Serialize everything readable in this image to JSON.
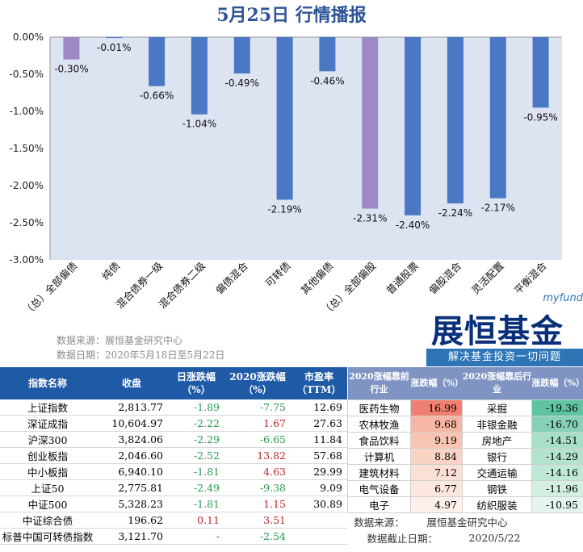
{
  "title": "5月25日   行情播报",
  "chart_data": {
    "type": "bar",
    "categories": [
      "（总）全部偏债",
      "纯债",
      "混合债券一级",
      "混合债券二级",
      "偏债混合",
      "可转债",
      "其他偏债",
      "（总）全部偏股",
      "普通股票",
      "偏股混合",
      "灵活配置",
      "平衡混合"
    ],
    "values": [
      -0.3,
      -0.01,
      -0.66,
      -1.04,
      -0.49,
      -2.19,
      -0.46,
      -2.31,
      -2.4,
      -2.24,
      -2.17,
      -0.95
    ],
    "data_labels": [
      "-0.30%",
      "-0.01%",
      "-0.66%",
      "-1.04%",
      "-0.49%",
      "-2.19%",
      "-0.46%",
      "-2.31%",
      "-2.40%",
      "-2.24%",
      "-2.17%",
      "-0.95%"
    ],
    "highlight_categories": [
      "（总）全部偏债",
      "（总）全部偏股"
    ],
    "y_ticks": [
      "0.00%",
      "-0.50%",
      "-1.00%",
      "-1.50%",
      "-2.00%",
      "-2.50%",
      "-3.00%"
    ],
    "ylim": [
      -3.0,
      0.0
    ],
    "grid": false,
    "colors": {
      "bar": "#4a78c3",
      "highlight": "#9b8ac4",
      "plot_bg": "#dce3f1"
    }
  },
  "source": {
    "line1": "数据来源：展恒基金研究中心",
    "line2": "数据日期：2020年5月18日至5月22日"
  },
  "logo": {
    "brand": "myfund",
    "name": "展恒基金",
    "slogan": "解决基金投资一切问题"
  },
  "index_table": {
    "headers": [
      "指数名称",
      "收盘",
      "日涨跌幅（%）",
      "2020涨跌幅（%）",
      "市盈率（TTM）"
    ],
    "rows": [
      {
        "name": "上证指数",
        "close": "2,813.77",
        "day": "-1.89",
        "ytd": "-7.75",
        "pe": "12.69"
      },
      {
        "name": "深证成指",
        "close": "10,604.97",
        "day": "-2.22",
        "ytd": "1.67",
        "pe": "27.63"
      },
      {
        "name": "沪深300",
        "close": "3,824.06",
        "day": "-2.29",
        "ytd": "-6.65",
        "pe": "11.84"
      },
      {
        "name": "创业板指",
        "close": "2,046.60",
        "day": "-2.52",
        "ytd": "13.82",
        "pe": "57.68"
      },
      {
        "name": "中小板指",
        "close": "6,940.10",
        "day": "-1.81",
        "ytd": "4.63",
        "pe": "29.99"
      },
      {
        "name": "上证50",
        "close": "2,775.81",
        "day": "-2.49",
        "ytd": "-9.38",
        "pe": "9.09"
      },
      {
        "name": "中证500",
        "close": "5,328.23",
        "day": "-1.81",
        "ytd": "1.15",
        "pe": "30.89"
      },
      {
        "name": "中证综合债",
        "close": "196.62",
        "day": "0.11",
        "ytd": "3.51",
        "pe": ""
      },
      {
        "name": "标普中国可转债指数",
        "close": "3,121.70",
        "day": "-",
        "ytd": "-2.54",
        "pe": ""
      }
    ]
  },
  "sector_table": {
    "headers": [
      "2020涨幅靠前行业",
      "涨跌幅（%）",
      "2020涨幅靠后行业",
      "涨跌幅（%）"
    ],
    "rows": [
      {
        "top": "医药生物",
        "top_val": "16.99",
        "bottom": "采掘",
        "bottom_val": "-19.36"
      },
      {
        "top": "农林牧渔",
        "top_val": "9.68",
        "bottom": "非银金融",
        "bottom_val": "-16.70"
      },
      {
        "top": "食品饮料",
        "top_val": "9.19",
        "bottom": "房地产",
        "bottom_val": "-14.51"
      },
      {
        "top": "计算机",
        "top_val": "8.84",
        "bottom": "银行",
        "bottom_val": "-14.29"
      },
      {
        "top": "建筑材料",
        "top_val": "7.12",
        "bottom": "交通运输",
        "bottom_val": "-14.16"
      },
      {
        "top": "电气设备",
        "top_val": "6.77",
        "bottom": "钢铁",
        "bottom_val": "-11.96"
      },
      {
        "top": "电子",
        "top_val": "4.97",
        "bottom": "纺织服装",
        "bottom_val": "-10.95"
      }
    ],
    "footer": {
      "source_label": "数据来源：",
      "source": "展恒基金研究中心",
      "date_label": "数据截止日期：",
      "date": "2020/5/22"
    },
    "top_colors": [
      "#f07f72",
      "#f7b6a3",
      "#f8c5b4",
      "#f9d3c4",
      "#fbe0d5",
      "#fce7de",
      "#fdf0ea"
    ],
    "bottom_colors": [
      "#5ec3a0",
      "#86d2b6",
      "#a7dfc9",
      "#b3e3cf",
      "#bfe8d7",
      "#d3efe2",
      "#e3f5ed"
    ]
  }
}
